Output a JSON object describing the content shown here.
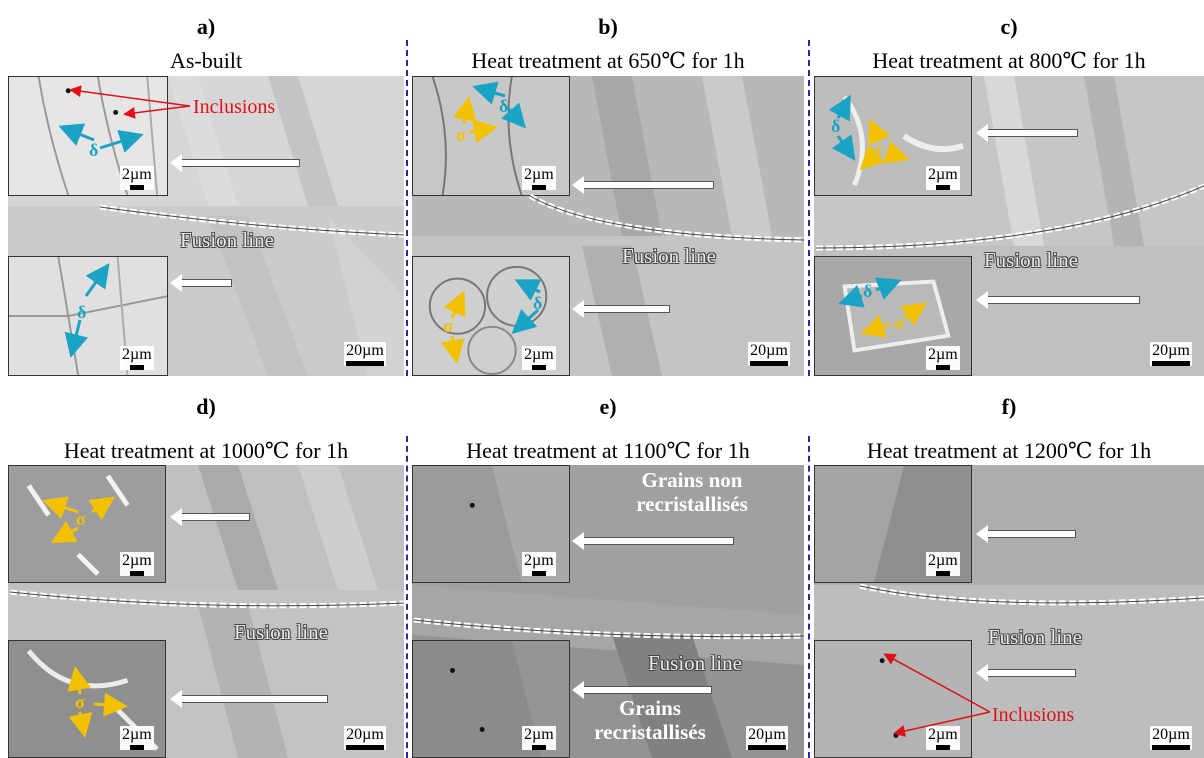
{
  "panels": [
    {
      "letter": "a)",
      "title": "As-built",
      "fusion": "Fusion line",
      "scale_large": "20µm",
      "scale_small_top": "2µm",
      "scale_small_bottom": "2µm"
    },
    {
      "letter": "b)",
      "title": "Heat treatment at 650℃ for 1h",
      "fusion": "Fusion line",
      "scale_large": "20µm",
      "scale_small_top": "2µm",
      "scale_small_bottom": "2µm"
    },
    {
      "letter": "c)",
      "title": "Heat treatment at 800℃ for 1h",
      "fusion": "Fusion line",
      "scale_large": "20µm",
      "scale_small_top": "2µm",
      "scale_small_bottom": "2µm"
    },
    {
      "letter": "d)",
      "title": "Heat treatment at 1000℃ for 1h",
      "fusion": "Fusion line",
      "scale_large": "20µm",
      "scale_small_top": "2µm",
      "scale_small_bottom": "2µm"
    },
    {
      "letter": "e)",
      "title": "Heat treatment at 1100℃ for 1h",
      "fusion": "Fusion line",
      "scale_large": "20µm",
      "scale_small_top": "2µm",
      "scale_small_bottom": "2µm"
    },
    {
      "letter": "f)",
      "title": "Heat treatment at 1200℃ for 1h",
      "fusion": "Fusion line",
      "scale_large": "20µm",
      "scale_small_top": "2µm",
      "scale_small_bottom": "2µm"
    }
  ],
  "annotations": {
    "inclusions": "Inclusions",
    "delta": "δ",
    "sigma": "σ",
    "grains_non_line1": "Grains non",
    "grains_non_line2": "recristallisés",
    "grains_line1": "Grains",
    "grains_line2": "recristallisés"
  },
  "colors": {
    "delta_arrow": "#1aa3c4",
    "sigma_arrow": "#f2c200",
    "inclusion_arrow": "#e0101a",
    "divider": "#2a2a9a"
  }
}
